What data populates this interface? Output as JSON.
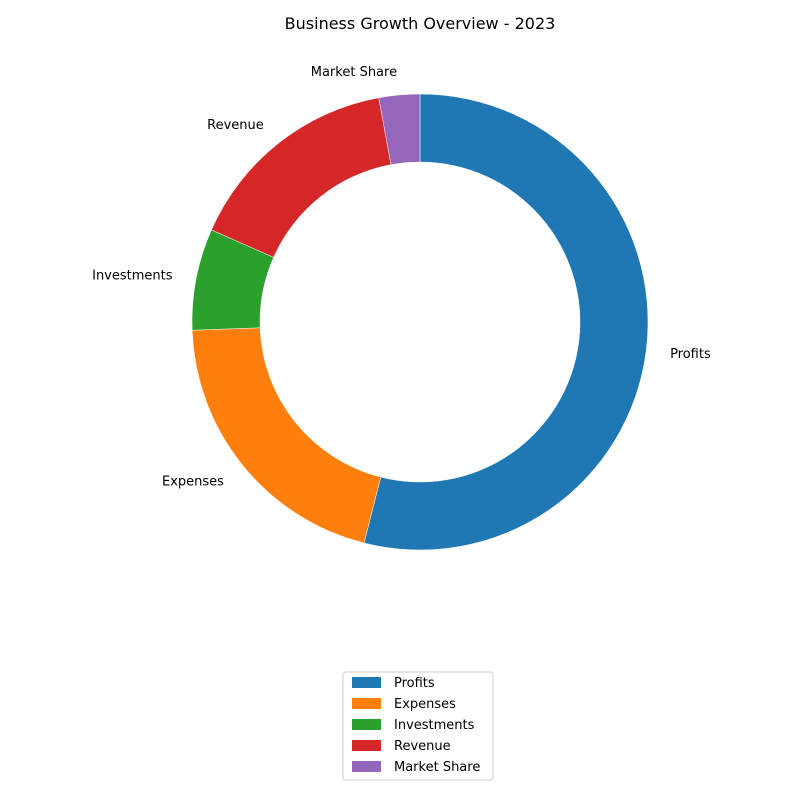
{
  "chart_data": {
    "type": "pie",
    "style": "donut",
    "title": "Business Growth Overview - 2023",
    "categories": [
      "Profits",
      "Expenses",
      "Investments",
      "Revenue",
      "Market Share"
    ],
    "values": [
      54.0,
      20.5,
      7.2,
      15.5,
      2.9
    ],
    "colors": [
      "#1f77b4",
      "#ff7f0e",
      "#2ca02c",
      "#d62728",
      "#9467bd"
    ],
    "start_angle": 90,
    "direction": "clockwise",
    "legend_placement": "lower-center"
  }
}
